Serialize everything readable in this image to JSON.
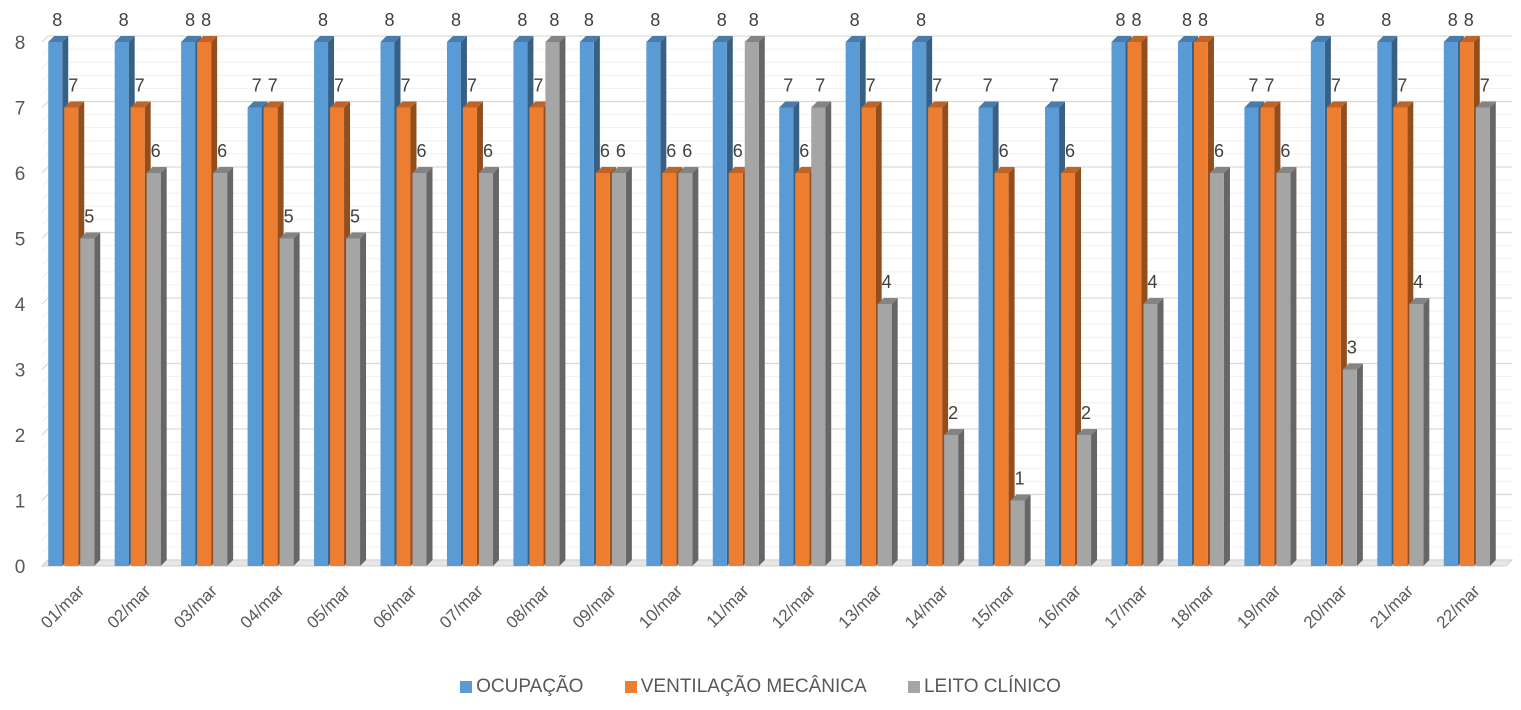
{
  "chart_data": {
    "type": "bar",
    "title": "",
    "xlabel": "",
    "ylabel": "",
    "ylim": [
      0,
      8
    ],
    "yticks": [
      0,
      1,
      2,
      3,
      4,
      5,
      6,
      7,
      8
    ],
    "grid": true,
    "legend_position": "bottom",
    "categories": [
      "01/mar",
      "02/mar",
      "03/mar",
      "04/mar",
      "05/mar",
      "06/mar",
      "07/mar",
      "08/mar",
      "09/mar",
      "10/mar",
      "11/mar",
      "12/mar",
      "13/mar",
      "14/mar",
      "15/mar",
      "16/mar",
      "17/mar",
      "18/mar",
      "19/mar",
      "20/mar",
      "21/mar",
      "22/mar"
    ],
    "series": [
      {
        "name": "OCUPAÇÃO",
        "color": "#5B9BD5",
        "values": [
          8,
          8,
          8,
          7,
          8,
          8,
          8,
          8,
          8,
          8,
          8,
          7,
          8,
          8,
          7,
          7,
          8,
          8,
          7,
          8,
          8,
          8
        ]
      },
      {
        "name": "VENTILAÇÃO MECÂNICA",
        "color": "#ED7D31",
        "values": [
          7,
          7,
          8,
          7,
          7,
          7,
          7,
          7,
          6,
          6,
          6,
          6,
          7,
          7,
          6,
          6,
          8,
          8,
          7,
          7,
          7,
          8
        ]
      },
      {
        "name": "LEITO CLÍNICO",
        "color": "#A5A5A5",
        "values": [
          5,
          6,
          6,
          5,
          5,
          6,
          6,
          8,
          6,
          6,
          8,
          7,
          4,
          2,
          1,
          2,
          4,
          6,
          6,
          3,
          4,
          7
        ]
      }
    ]
  }
}
